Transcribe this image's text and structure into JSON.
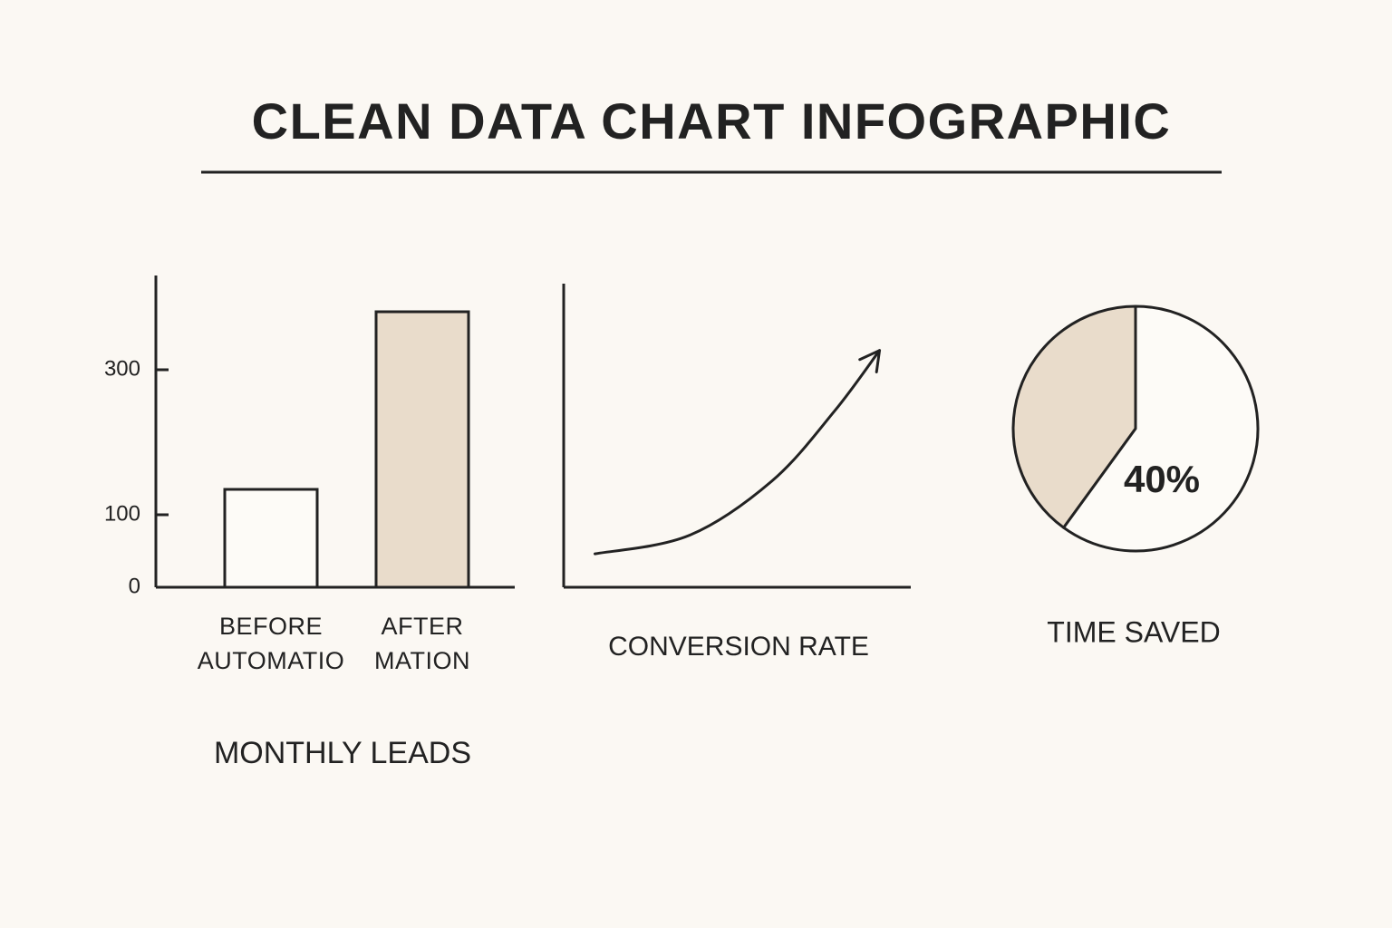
{
  "title": "CLEAN DATA CHART INFOGRAPHIC",
  "chart_data": [
    {
      "type": "bar",
      "title": "MONTHLY LEADS",
      "categories": [
        "BEFORE AUTOMATIO",
        "AFTER MATION"
      ],
      "values": [
        135,
        380
      ],
      "colors": [
        "#fdfbf7",
        "#e9dccb"
      ],
      "ylim": [
        0,
        430
      ],
      "yticks": [
        0,
        100,
        300
      ]
    },
    {
      "type": "line",
      "title": "CONVERSION RATE",
      "x": [
        0.9,
        3.6,
        6.0,
        7.8,
        9.1
      ],
      "values": [
        1.1,
        1.7,
        3.5,
        5.8,
        7.8
      ],
      "xlim": [
        0,
        10
      ],
      "ylim": [
        0,
        10
      ],
      "color": "#222222"
    },
    {
      "type": "pie",
      "title": "TIME SAVED",
      "values": [
        40,
        60
      ],
      "value_labels": [
        "40%",
        null
      ],
      "colors": [
        "#e9dccb",
        "#fdfbf7"
      ]
    }
  ]
}
